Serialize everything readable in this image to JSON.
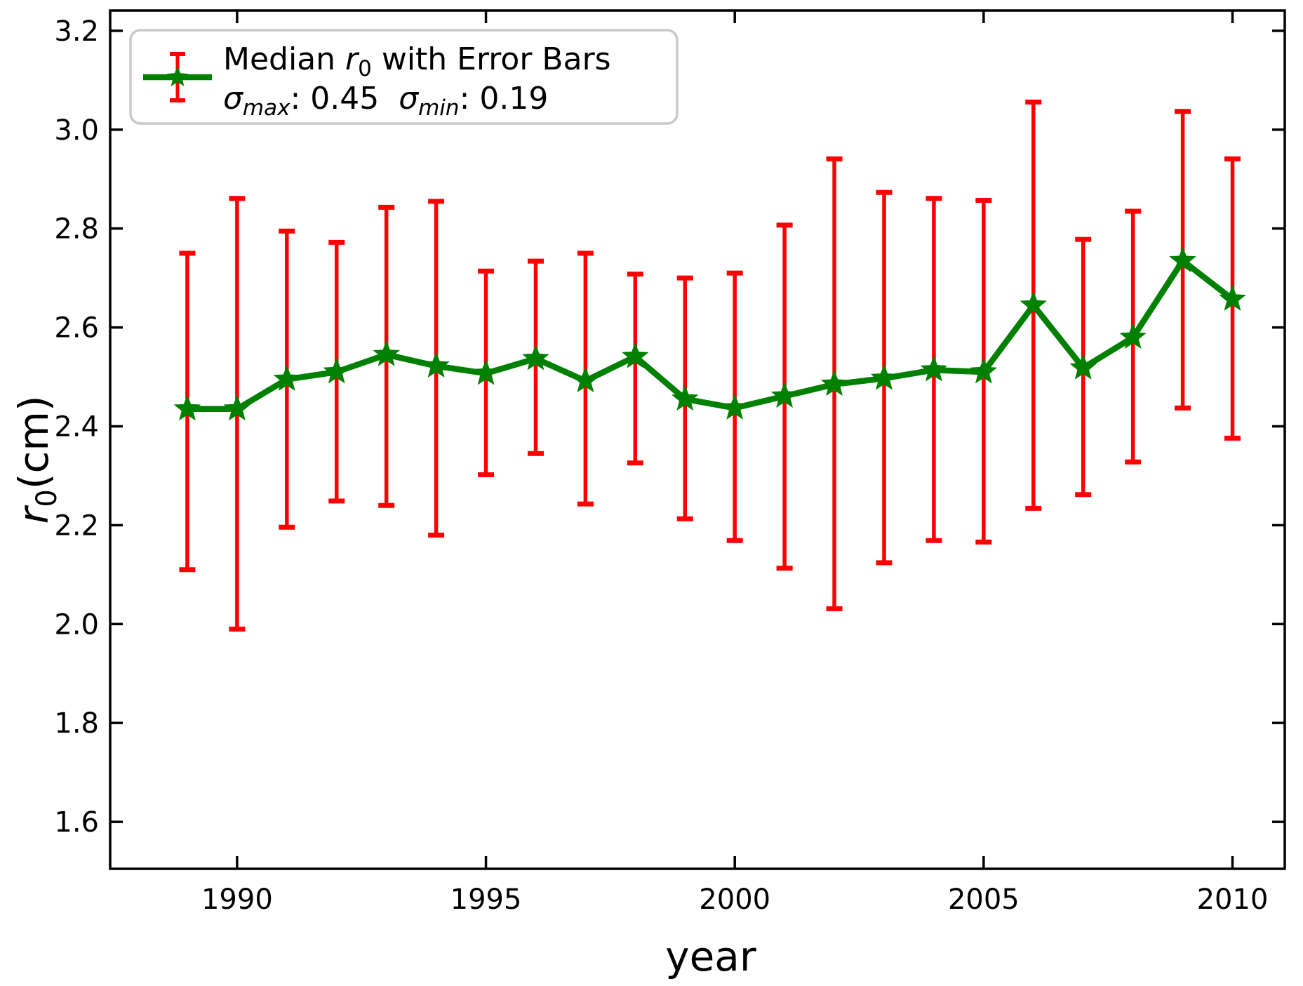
{
  "chart_data": {
    "type": "line",
    "title": "",
    "x": [
      1989,
      1990,
      1991,
      1992,
      1993,
      1994,
      1995,
      1996,
      1997,
      1998,
      1999,
      2000,
      2001,
      2002,
      2003,
      2004,
      2005,
      2006,
      2007,
      2008,
      2009,
      2010
    ],
    "series": [
      {
        "name": "Median r0 with Error Bars",
        "values": [
          2.435,
          2.435,
          2.495,
          2.51,
          2.545,
          2.522,
          2.507,
          2.537,
          2.492,
          2.541,
          2.455,
          2.437,
          2.461,
          2.485,
          2.497,
          2.514,
          2.51,
          2.645,
          2.518,
          2.58,
          2.735,
          2.657
        ]
      }
    ],
    "error_upper_abs": [
      2.75,
      2.861,
      2.795,
      2.772,
      2.843,
      2.855,
      2.714,
      2.734,
      2.75,
      2.708,
      2.7,
      2.71,
      2.807,
      2.941,
      2.873,
      2.861,
      2.857,
      3.056,
      2.778,
      2.835,
      3.037,
      2.941
    ],
    "error_lower_abs": [
      2.11,
      1.99,
      2.196,
      2.249,
      2.24,
      2.18,
      2.302,
      2.345,
      2.243,
      2.326,
      2.213,
      2.169,
      2.113,
      2.031,
      2.124,
      2.169,
      2.166,
      2.234,
      2.262,
      2.328,
      2.437,
      2.376
    ],
    "xlabel": "year",
    "ylabel": "r0(cm)",
    "xlim": [
      1987.45,
      2011.05
    ],
    "ylim": [
      1.505,
      3.241
    ],
    "xticks": [
      1990,
      1995,
      2000,
      2005,
      2010
    ],
    "xtick_labels": [
      "1990",
      "1995",
      "2000",
      "2005",
      "2010"
    ],
    "yticks": [
      1.6,
      1.8,
      2.0,
      2.2,
      2.4,
      2.6,
      2.8,
      3.0,
      3.2
    ],
    "ytick_labels": [
      "1.6",
      "1.8",
      "2.0",
      "2.2",
      "2.4",
      "2.6",
      "2.8",
      "3.0",
      "3.2"
    ],
    "grid": false,
    "legend_position": "upper left",
    "sigma_max": "0.45",
    "sigma_min": "0.19",
    "colors": {
      "line": "#008000",
      "marker": "#008000",
      "error_bar": "#ff0000",
      "axis": "#000000",
      "legend_border": "#c9c9c9",
      "background": "#ffffff"
    }
  },
  "labels": {
    "xlabel": "year",
    "ylabel_r": "r",
    "ylabel_sub": "0",
    "ylabel_rest": "(cm)",
    "legend_line1_pre": "Median ",
    "legend_line1_r": "r",
    "legend_line1_sub": "0",
    "legend_line1_post": " with Error Bars",
    "legend_line2_sigma1": "σ",
    "legend_line2_sub1": "max",
    "legend_line2_val1": ": 0.45  ",
    "legend_line2_sigma2": "σ",
    "legend_line2_sub2": "min",
    "legend_line2_val2": ": 0.19"
  }
}
